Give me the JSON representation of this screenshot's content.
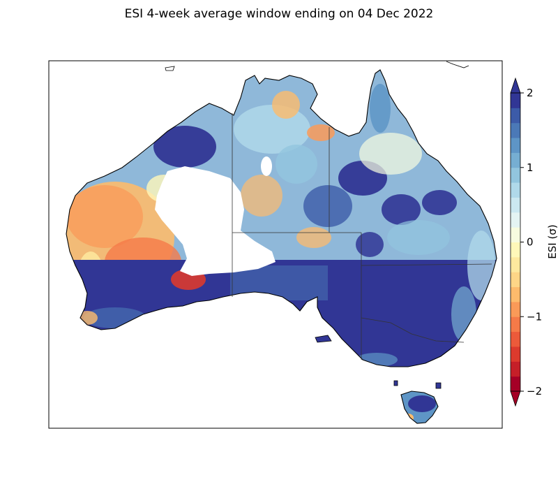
{
  "title": "ESI 4-week average window ending on 04 Dec 2022",
  "colorbar": {
    "label": "ESI (σ)",
    "min": -2,
    "max": 2,
    "ticks": [
      {
        "value": 2,
        "label": "2"
      },
      {
        "value": 1,
        "label": "1"
      },
      {
        "value": 0,
        "label": "0"
      },
      {
        "value": -1,
        "label": "−1"
      },
      {
        "value": -2,
        "label": "−2"
      }
    ],
    "extend": "both",
    "levels": 20,
    "colors": [
      "#a50026",
      "#c51f28",
      "#dc3a2d",
      "#ec5a3a",
      "#f57a48",
      "#fa9a58",
      "#fdbb6c",
      "#fed687",
      "#fee99e",
      "#fff8b9",
      "#f7fcdf",
      "#e4f4f3",
      "#cbe8f1",
      "#b0d9ea",
      "#92c5de",
      "#76aed2",
      "#5e95c6",
      "#4b79b7",
      "#3c5ba8",
      "#313695"
    ]
  },
  "map": {
    "region": "Australia",
    "missing_data_color": "#ffffff"
  }
}
